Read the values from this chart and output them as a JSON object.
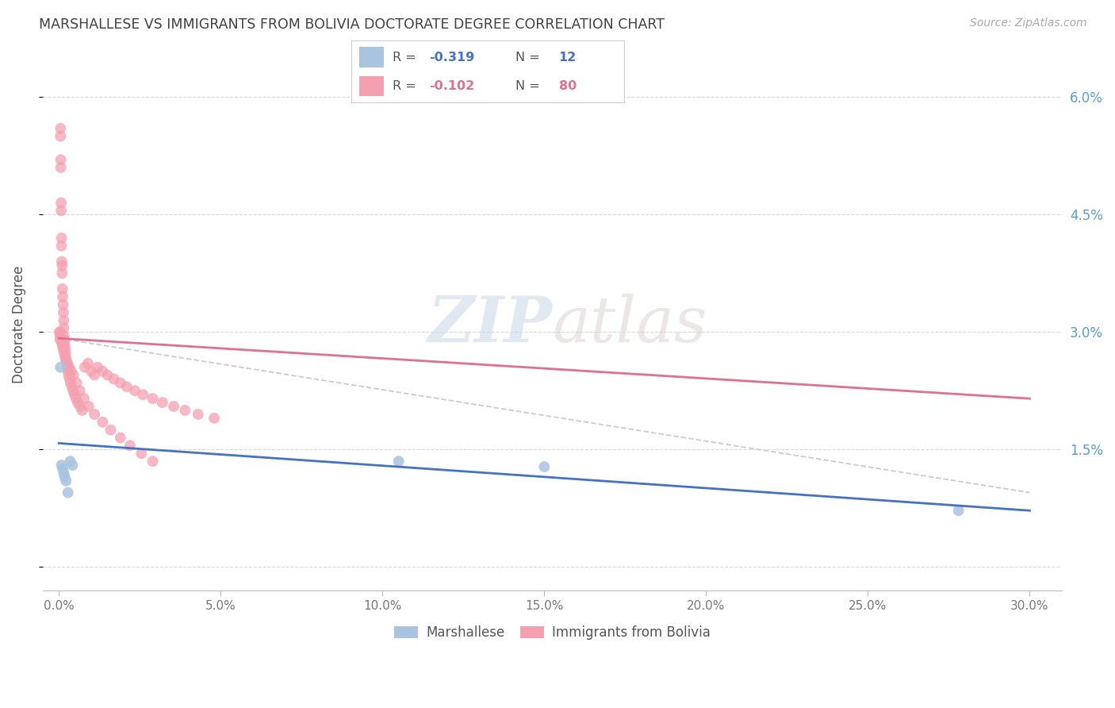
{
  "title": "MARSHALLESE VS IMMIGRANTS FROM BOLIVIA DOCTORATE DEGREE CORRELATION CHART",
  "source": "Source: ZipAtlas.com",
  "ylabel": "Doctorate Degree",
  "watermark_zip": "ZIP",
  "watermark_atlas": "atlas",
  "background_color": "#ffffff",
  "scatter_color_marshallese": "#a8c4e0",
  "scatter_color_bolivia": "#f4a0b0",
  "line_color_marshallese": "#4472c4",
  "line_color_bolivia": "#e07090",
  "dashed_line_color": "#cccccc",
  "grid_color": "#d8d8d8",
  "title_color": "#404040",
  "right_axis_color": "#5b9bd5",
  "legend_r1_color": "#4472c4",
  "legend_r2_color": "#e07090",
  "legend_text_color": "#555555",
  "marshallese_x": [
    0.05,
    0.08,
    0.12,
    0.15,
    0.18,
    0.22,
    0.28,
    0.35,
    0.42,
    10.5,
    15.0,
    27.8
  ],
  "marshallese_y": [
    2.55,
    1.3,
    1.25,
    1.2,
    1.15,
    1.1,
    0.95,
    1.35,
    1.3,
    1.35,
    1.28,
    0.72
  ],
  "bolivia_x": [
    0.02,
    0.03,
    0.04,
    0.05,
    0.05,
    0.06,
    0.06,
    0.07,
    0.07,
    0.08,
    0.08,
    0.09,
    0.1,
    0.1,
    0.11,
    0.12,
    0.13,
    0.14,
    0.15,
    0.15,
    0.16,
    0.17,
    0.18,
    0.19,
    0.2,
    0.21,
    0.22,
    0.24,
    0.26,
    0.28,
    0.3,
    0.33,
    0.36,
    0.4,
    0.44,
    0.48,
    0.53,
    0.58,
    0.65,
    0.72,
    0.8,
    0.9,
    1.0,
    1.1,
    1.2,
    1.35,
    1.5,
    1.7,
    1.9,
    2.1,
    2.35,
    2.6,
    2.9,
    3.2,
    3.55,
    3.9,
    4.3,
    4.8,
    0.05,
    0.08,
    0.1,
    0.12,
    0.15,
    0.18,
    0.22,
    0.27,
    0.32,
    0.38,
    0.45,
    0.55,
    0.65,
    0.78,
    0.92,
    1.1,
    1.35,
    1.6,
    1.9,
    2.2,
    2.55,
    2.9
  ],
  "bolivia_y": [
    3.0,
    2.95,
    2.9,
    5.6,
    5.5,
    5.2,
    5.1,
    4.65,
    4.55,
    4.2,
    4.1,
    3.9,
    3.85,
    3.75,
    3.55,
    3.45,
    3.35,
    3.25,
    3.15,
    3.05,
    2.95,
    2.9,
    2.85,
    2.8,
    2.75,
    2.7,
    2.65,
    2.6,
    2.55,
    2.5,
    2.45,
    2.4,
    2.35,
    2.3,
    2.25,
    2.2,
    2.15,
    2.1,
    2.05,
    2.0,
    2.55,
    2.6,
    2.5,
    2.45,
    2.55,
    2.5,
    2.45,
    2.4,
    2.35,
    2.3,
    2.25,
    2.2,
    2.15,
    2.1,
    2.05,
    2.0,
    1.95,
    1.9,
    3.0,
    2.9,
    2.85,
    2.8,
    2.75,
    2.7,
    2.65,
    2.6,
    2.55,
    2.5,
    2.45,
    2.35,
    2.25,
    2.15,
    2.05,
    1.95,
    1.85,
    1.75,
    1.65,
    1.55,
    1.45,
    1.35
  ],
  "marsh_line_x0": 0.0,
  "marsh_line_y0": 1.58,
  "marsh_line_x1": 30.0,
  "marsh_line_y1": 0.72,
  "boliv_line_x0": 0.0,
  "boliv_line_y0": 2.92,
  "boliv_line_x1": 30.0,
  "boliv_line_y1": 2.15,
  "dash_line_x0": 0.0,
  "dash_line_y0": 2.92,
  "dash_line_x1": 30.0,
  "dash_line_y1": 0.95,
  "xlim_min": -0.5,
  "xlim_max": 31.0,
  "ylim_min": -0.3,
  "ylim_max": 6.5,
  "xtick_vals": [
    0,
    5,
    10,
    15,
    20,
    25,
    30
  ],
  "ytick_vals": [
    0.0,
    1.5,
    3.0,
    4.5,
    6.0
  ],
  "legend_r1_text": "R = -0.319   N =  12",
  "legend_r2_text": "R = -0.102   N =  80",
  "legend_r1_val": "-0.319",
  "legend_r1_n": "12",
  "legend_r2_val": "-0.102",
  "legend_r2_n": "80"
}
